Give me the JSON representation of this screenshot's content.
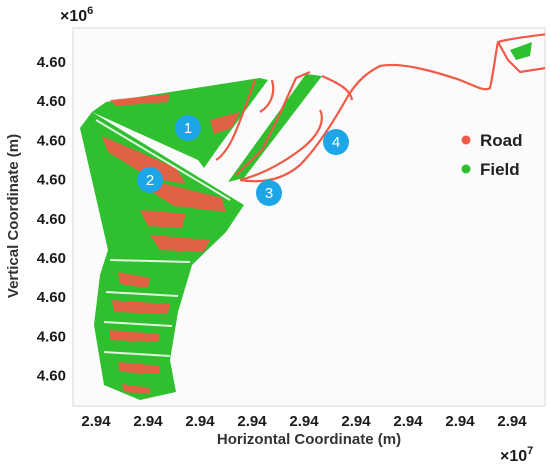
{
  "chart_data": {
    "type": "scatter",
    "xlabel": "Horizontal Coordinate (m)",
    "ylabel": "Vertical Coordinate (m)",
    "x_multiplier": "×10",
    "x_multiplier_exp": "7",
    "y_multiplier": "×10",
    "y_multiplier_exp": "6",
    "x_tick_labels": [
      "2.94",
      "2.94",
      "2.94",
      "2.94",
      "2.94",
      "2.94",
      "2.94",
      "2.94",
      "2.94"
    ],
    "y_tick_labels": [
      "4.60",
      "4.60",
      "4.60",
      "4.60",
      "4.60",
      "4.60",
      "4.60",
      "4.60",
      "4.60"
    ],
    "legend": [
      {
        "label": "Road",
        "color": "#f05a46"
      },
      {
        "label": "Field",
        "color": "#2fbf2f"
      }
    ],
    "legend_position": "right",
    "region_markers": [
      "1",
      "2",
      "3",
      "4"
    ],
    "series": [
      {
        "name": "Road",
        "color": "#f05a46"
      },
      {
        "name": "Field",
        "color": "#2fbf2f"
      }
    ],
    "grid": false
  }
}
